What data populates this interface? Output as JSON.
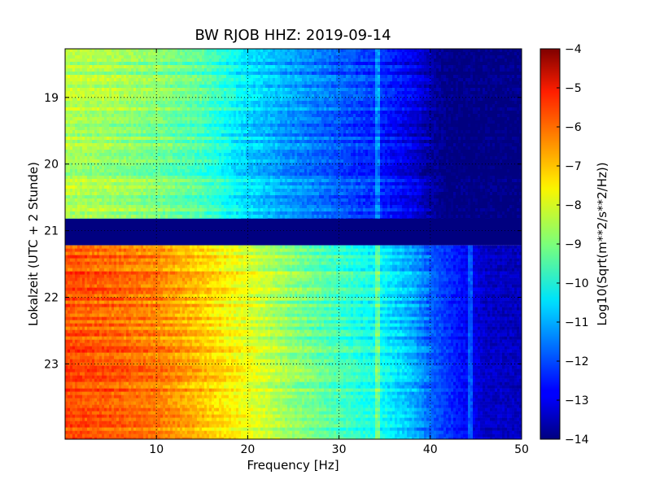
{
  "chart_data": {
    "type": "heatmap",
    "title": "BW RJOB HHZ: 2019-09-14",
    "xlabel": "Frequency [Hz]",
    "ylabel": "Lokalzeit (UTC + 2 Stunde)",
    "xlim": [
      0,
      50
    ],
    "ylim": [
      18.27,
      24.13
    ],
    "y_inverted": true,
    "x_ticks": [
      10,
      20,
      30,
      40,
      50
    ],
    "y_ticks": [
      19,
      20,
      21,
      22,
      23
    ],
    "grid": true,
    "colormap": "jet",
    "colorbar": {
      "label": "Log10(Sqrt(m**2/s**2/Hz))",
      "min": -14,
      "max": -4,
      "ticks": [
        -4,
        -5,
        -6,
        -7,
        -8,
        -9,
        -10,
        -11,
        -12,
        -13,
        -14
      ]
    },
    "segments": [
      {
        "name": "",
        "time_start": 18.27,
        "time_end": 20.82,
        "profile": [
          [
            0,
            -8.5
          ],
          [
            5,
            -8.7
          ],
          [
            10,
            -9.0
          ],
          [
            15,
            -9.5
          ],
          [
            20,
            -10.6
          ],
          [
            25,
            -11.3
          ],
          [
            30,
            -11.9
          ],
          [
            35,
            -12.5
          ],
          [
            38,
            -13.0
          ],
          [
            40,
            -13.6
          ],
          [
            42,
            -14.0
          ],
          [
            50,
            -14.0
          ]
        ],
        "features": [
          {
            "freq_hz": 34.2,
            "description": ""
          }
        ]
      },
      {
        "name": "",
        "time_start": 20.82,
        "time_end": 21.22,
        "value": -14.0
      },
      {
        "name": "",
        "time_start": 21.22,
        "time_end": 24.13,
        "profile": [
          [
            0,
            -6.0
          ],
          [
            5,
            -6.2
          ],
          [
            10,
            -6.5
          ],
          [
            15,
            -7.2
          ],
          [
            20,
            -8.0
          ],
          [
            25,
            -8.9
          ],
          [
            30,
            -9.6
          ],
          [
            35,
            -10.3
          ],
          [
            38,
            -11.0
          ],
          [
            40,
            -11.8
          ],
          [
            44,
            -12.8
          ],
          [
            46,
            -13.3
          ],
          [
            50,
            -13.4
          ]
        ],
        "features": [
          {
            "freq_hz": 34.3,
            "description": ""
          },
          {
            "freq_hz": 44.3,
            "description": ""
          }
        ]
      }
    ]
  }
}
